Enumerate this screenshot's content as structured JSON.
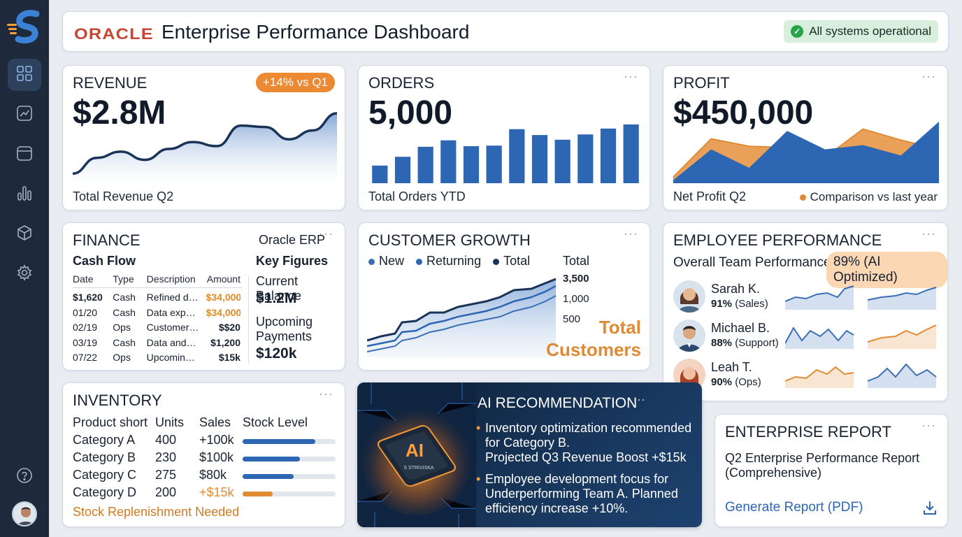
{
  "header": {
    "logo_text": "ORACLE",
    "title": "Enterprise Performance Dashboard",
    "status": "All systems operational"
  },
  "sidebar": {
    "items": [
      {
        "name": "dashboard-icon"
      },
      {
        "name": "trend-chart-icon"
      },
      {
        "name": "calendar-icon"
      },
      {
        "name": "bar-chart-icon"
      },
      {
        "name": "cube-icon"
      },
      {
        "name": "gear-icon"
      }
    ],
    "help_icon": "help-icon",
    "logo_letter": "S"
  },
  "revenue": {
    "title": "REVENUE",
    "badge": "+14% vs Q1",
    "value": "$2.8M",
    "footer": "Total Revenue Q2",
    "trend": [
      0.12,
      0.35,
      0.44,
      0.32,
      0.48,
      0.58,
      0.52,
      0.82,
      0.8,
      0.62,
      0.75,
      1.0
    ]
  },
  "orders": {
    "title": "ORDERS",
    "value": "5,000",
    "footer": "Total Orders YTD",
    "bars": [
      0.3,
      0.45,
      0.62,
      0.73,
      0.63,
      0.64,
      0.92,
      0.82,
      0.74,
      0.83,
      0.93,
      1.0
    ]
  },
  "profit": {
    "title": "PROFIT",
    "value": "$450,000",
    "footer": "Net Profit Q2",
    "legend": "Comparison vs last year",
    "current": [
      0.05,
      0.55,
      0.25,
      0.85,
      0.55,
      0.62,
      0.45,
      1.0
    ],
    "last_year": [
      0.1,
      0.72,
      0.6,
      0.58,
      0.42,
      0.88,
      0.7,
      0.55
    ]
  },
  "finance": {
    "title": "FINANCE",
    "source": "Oracle ERP",
    "subtitle": "Cash Flow",
    "headers": [
      "Date",
      "Type",
      "Description",
      "Amount"
    ],
    "rows": [
      {
        "date": "$1,620",
        "type": "Cash",
        "desc": "Refined d…",
        "amount": "$34,000",
        "orange": true
      },
      {
        "date": "01/20",
        "type": "Cash",
        "desc": "Data exp…",
        "amount": "$34,000",
        "orange": true
      },
      {
        "date": "02/19",
        "type": "Ops",
        "desc": "Customer…",
        "amount": "$$20",
        "orange": false
      },
      {
        "date": "03/19",
        "type": "Cash",
        "desc": "Data and…",
        "amount": "$1,200",
        "orange": false
      },
      {
        "date": "07/22",
        "type": "Ops",
        "desc": "Upcomin…",
        "amount": "$15k",
        "orange": false
      }
    ],
    "key_figures_title": "Key Figures",
    "current_balance_label": "Current Balance",
    "current_balance_value": "$1.2M",
    "upcoming_label_1": "Upcoming",
    "upcoming_label_2": "Payments",
    "upcoming_value": "$120k"
  },
  "customer_growth": {
    "title": "CUSTOMER GROWTH",
    "legend": [
      "New",
      "Returning",
      "Total"
    ],
    "total_label": "Total",
    "y_labels": [
      "3,500",
      "1,000",
      "500"
    ],
    "big_label_1": "Total",
    "big_label_2": "Customers"
  },
  "employee": {
    "title": "EMPLOYEE PERFORMANCE",
    "overall_label": "Overall Team Performance:",
    "overall_value": "89% (AI Optimized)",
    "people": [
      {
        "name": "Sarah K.",
        "pct": "91%",
        "dept": "(Sales)",
        "color": "#3a6fb5"
      },
      {
        "name": "Michael B.",
        "pct": "88%",
        "dept": "(Support)",
        "color": "#e08a34"
      },
      {
        "name": "Leah T.",
        "pct": "90%",
        "dept": "(Ops)",
        "color": "#3a6fb5"
      }
    ]
  },
  "inventory": {
    "title": "INVENTORY",
    "headers": [
      "Product short",
      "Units",
      "Sales",
      "Stock Level"
    ],
    "rows": [
      {
        "name": "Category A",
        "units": "400",
        "sales": "+100k",
        "level": 0.78,
        "orange": false
      },
      {
        "name": "Category B",
        "units": "230",
        "sales": "$100k",
        "level": 0.62,
        "orange": false
      },
      {
        "name": "Category C",
        "units": "275",
        "sales": "$80k",
        "level": 0.55,
        "orange": false
      },
      {
        "name": "Category D",
        "units": "200",
        "sales": "+$15k",
        "level": 0.32,
        "orange": true
      }
    ],
    "alert": "Stock Replenishment Needed"
  },
  "ai": {
    "title": "AI RECOMMENDATION",
    "chip_label": "AI",
    "chip_sub": "S STRIVISKA",
    "bullets": [
      [
        "Inventory optimization recommended",
        "for Category B.",
        "Projected Q3 Revenue Boost +$15k"
      ],
      [
        "Employee development focus for",
        "Underperforming Team A. Planned",
        "efficiency increase +10%."
      ]
    ]
  },
  "report": {
    "title": "ENTERPRISE REPORT",
    "line1": "Q2 Enterprise Performance Report",
    "line2": "(Comprehensive)",
    "link": "Generate Report (PDF)"
  },
  "colors": {
    "blue": "#2d66b3",
    "navy": "#1a3358",
    "orange": "#e08a34",
    "sidebar": "#1e2a3b"
  }
}
